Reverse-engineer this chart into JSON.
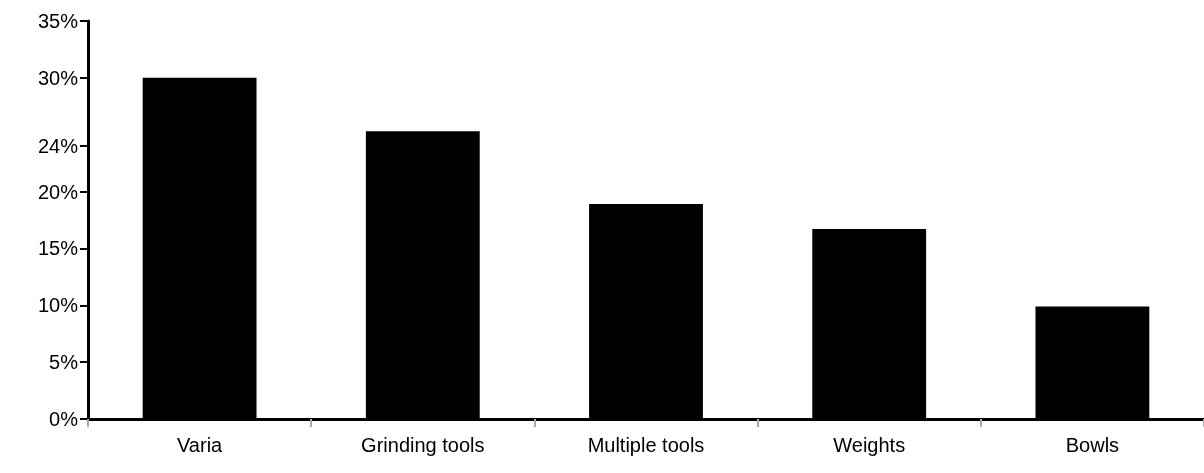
{
  "chart_data": {
    "type": "bar",
    "categories": [
      "Varia",
      "Grinding tools",
      "Multiple tools",
      "Weights",
      "Bowls"
    ],
    "values": [
      30,
      25.3,
      18.9,
      16.7,
      9.9
    ],
    "color": "#000000",
    "ylim": [
      0,
      35
    ],
    "yticks": [
      {
        "value": 0,
        "label": "0%"
      },
      {
        "value": 5,
        "label": "5%"
      },
      {
        "value": 10,
        "label": "10%"
      },
      {
        "value": 15,
        "label": "15%"
      },
      {
        "value": 20,
        "label": "20%"
      },
      {
        "value": 24,
        "label": "24%"
      },
      {
        "value": 30,
        "label": "30%"
      },
      {
        "value": 35,
        "label": "35%"
      }
    ],
    "grid": false
  }
}
